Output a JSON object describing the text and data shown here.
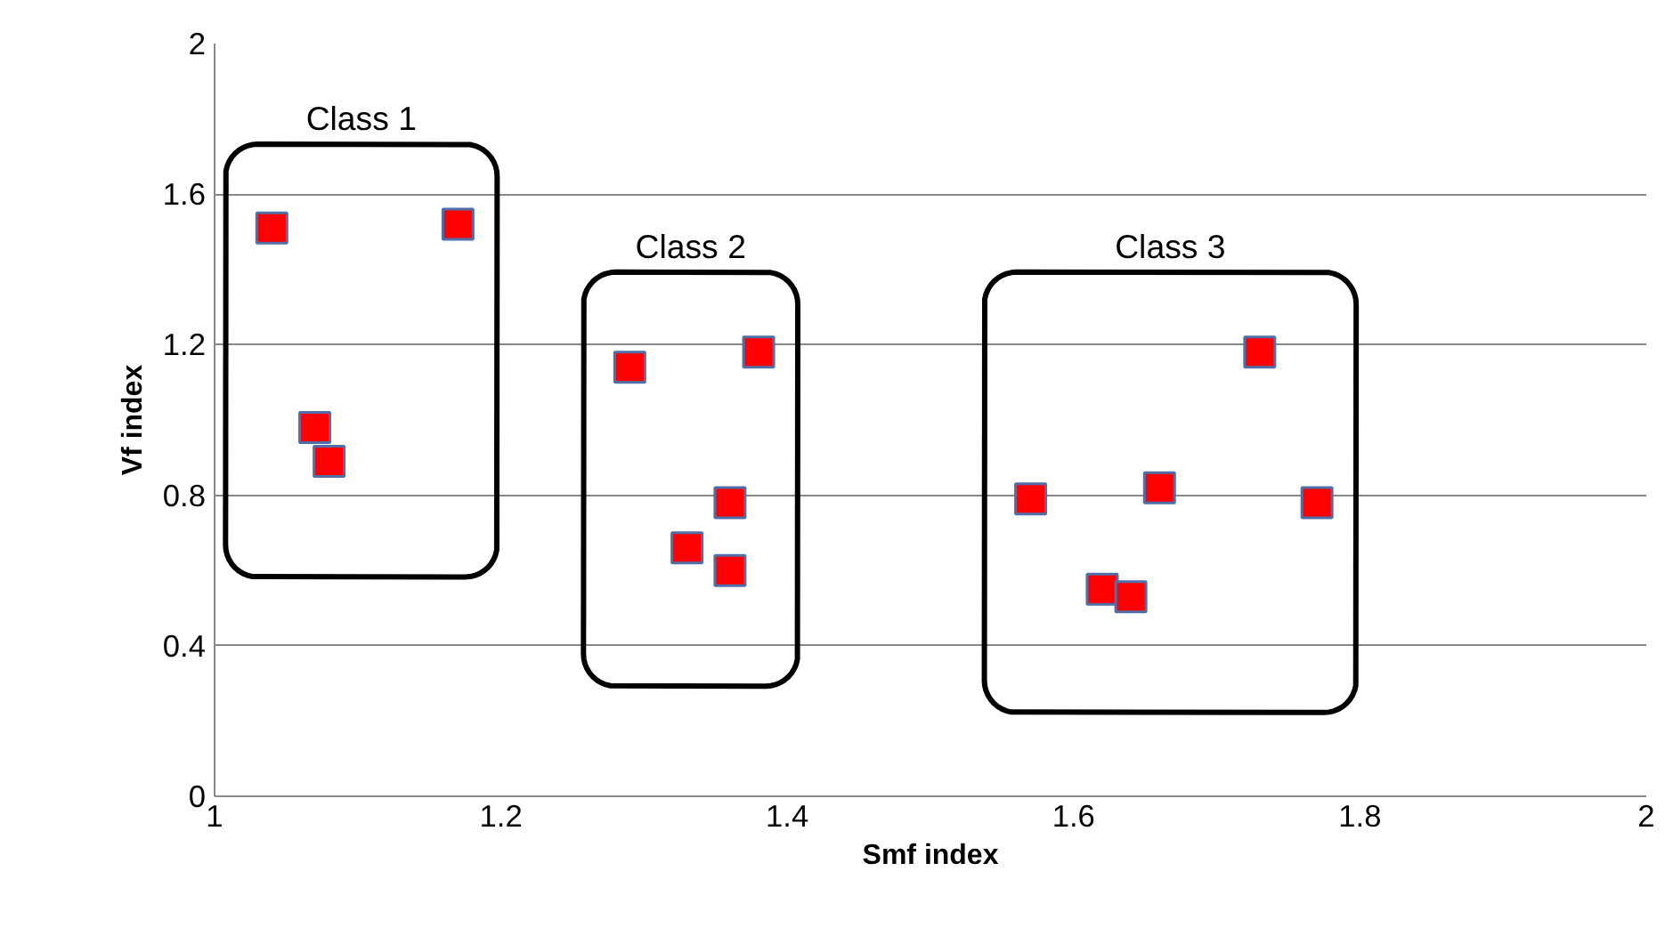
{
  "chart_data": {
    "type": "scatter",
    "xlabel": "Smf index",
    "ylabel": "Vf index",
    "xlim": [
      1,
      2
    ],
    "xticks": [
      1,
      1.2,
      1.4,
      1.6,
      1.8,
      2
    ],
    "ylim": [
      0,
      2
    ],
    "yticks": [
      0,
      0.4,
      0.8,
      1.2,
      1.6,
      2
    ],
    "grid": "y",
    "marker": "square",
    "series": [
      {
        "name": "Class 1",
        "color": "#ff0000",
        "x": [
          1.04,
          1.17,
          1.07,
          1.08
        ],
        "values": [
          1.51,
          1.52,
          0.98,
          0.89
        ]
      },
      {
        "name": "Class 2",
        "color": "#ff0000",
        "x": [
          1.29,
          1.38,
          1.36,
          1.33,
          1.36
        ],
        "values": [
          1.14,
          1.18,
          0.78,
          0.66,
          0.6
        ]
      },
      {
        "name": "Class 3",
        "color": "#ff0000",
        "x": [
          1.57,
          1.62,
          1.64,
          1.66,
          1.73,
          1.77
        ],
        "values": [
          0.79,
          0.55,
          0.53,
          0.82,
          1.18,
          0.78
        ]
      }
    ]
  }
}
